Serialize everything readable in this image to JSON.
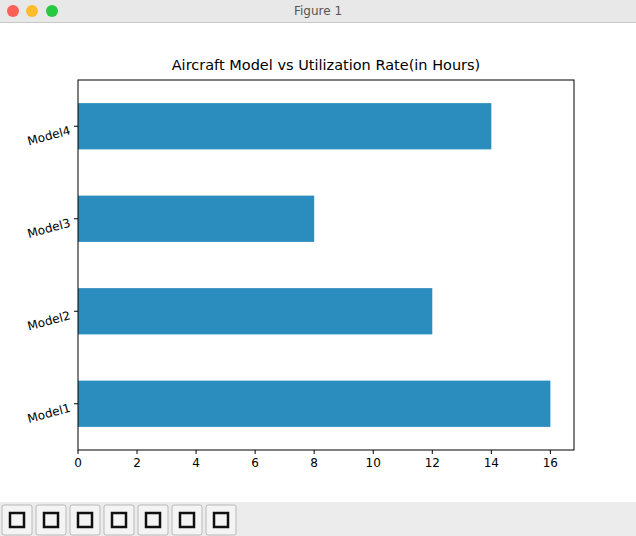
{
  "window": {
    "title": "Figure 1"
  },
  "chart_data": {
    "type": "bar",
    "orientation": "horizontal",
    "title": "Aircraft Model vs Utilization Rate(in Hours)",
    "categories": [
      "Model1",
      "Model2",
      "Model3",
      "Model4"
    ],
    "values": [
      16,
      12,
      8,
      14
    ],
    "color": "#2b8cbe",
    "xlim": [
      0,
      16.8
    ],
    "xticks": [
      0,
      2,
      4,
      6,
      8,
      10,
      12,
      14,
      16
    ],
    "grid": false
  }
}
